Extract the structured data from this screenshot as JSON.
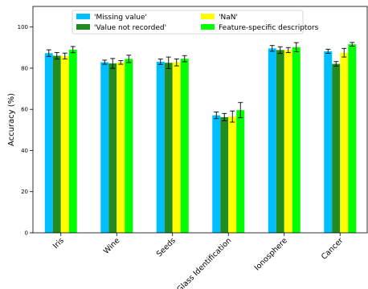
{
  "chart_data": {
    "type": "bar",
    "ylabel": "Accuracy (%)",
    "xlabel": "",
    "ylim": [
      0,
      110
    ],
    "yticks": [
      0,
      20,
      40,
      60,
      80,
      100
    ],
    "grid": false,
    "legend_position": "top",
    "categories": [
      "Iris",
      "Wine",
      "Seeds",
      "Glass Identification",
      "Ionosphere",
      "Cancer"
    ],
    "series": [
      {
        "name": "'Missing value'",
        "color": "#00bfff",
        "values": [
          87.3,
          82.9,
          83.1,
          57.1,
          89.6,
          88.2
        ],
        "errors": [
          1.6,
          1.0,
          1.3,
          1.6,
          1.4,
          1.0
        ]
      },
      {
        "name": "'Value not recorded'",
        "color": "#228b22",
        "values": [
          86.0,
          82.3,
          82.6,
          56.2,
          88.8,
          82.1
        ],
        "errors": [
          1.6,
          2.4,
          2.8,
          1.8,
          1.6,
          1.1
        ]
      },
      {
        "name": "'NaN'",
        "color": "#ffff00",
        "values": [
          85.9,
          82.8,
          82.8,
          56.5,
          88.8,
          87.5
        ],
        "errors": [
          1.4,
          0.9,
          1.7,
          2.7,
          1.2,
          2.1
        ]
      },
      {
        "name": "Feature-specific descriptors",
        "color": "#00ff00",
        "values": [
          89.0,
          84.5,
          84.6,
          59.6,
          90.2,
          91.6
        ],
        "errors": [
          1.5,
          1.8,
          1.5,
          3.7,
          2.2,
          0.9
        ]
      }
    ]
  }
}
